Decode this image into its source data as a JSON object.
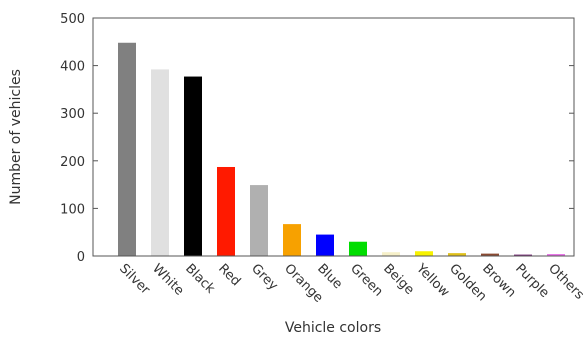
{
  "chart_data": {
    "type": "bar",
    "title": "",
    "xlabel": "Vehicle colors",
    "ylabel": "Number of vehicles",
    "ylim": [
      0,
      500
    ],
    "yticks": [
      0,
      100,
      200,
      300,
      400,
      500
    ],
    "grid": false,
    "categories": [
      "Silver",
      "White",
      "Black",
      "Red",
      "Grey",
      "Orange",
      "Blue",
      "Green",
      "Beige",
      "Yellow",
      "Golden",
      "Brown",
      "Purple",
      "Others"
    ],
    "values": [
      448,
      392,
      377,
      187,
      149,
      67,
      45,
      30,
      8,
      10,
      6,
      5,
      3,
      4
    ],
    "colors": [
      "#808080",
      "#e0e0e0",
      "#000000",
      "#ff1a00",
      "#b0b0b0",
      "#f7a100",
      "#0000ff",
      "#00dd00",
      "#f6f0c9",
      "#f7f200",
      "#e0c01a",
      "#8b4a32",
      "#7a2f7a",
      "#e56ae5"
    ]
  }
}
